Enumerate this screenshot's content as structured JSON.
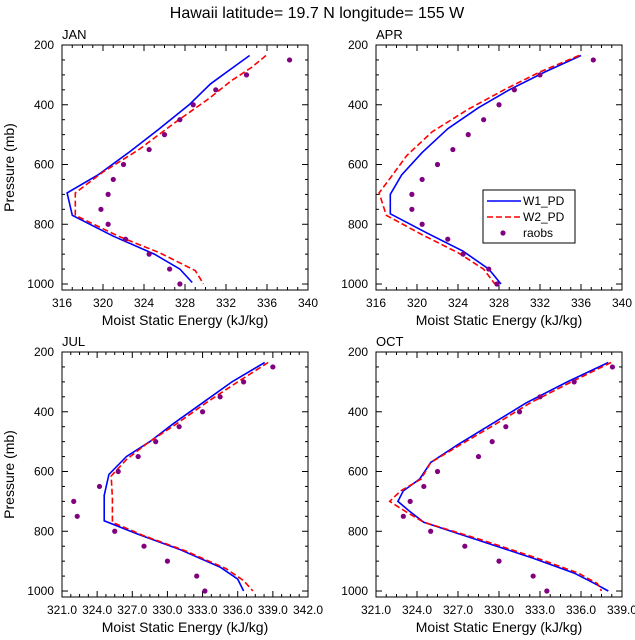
{
  "title": "Hawaii  latitude= 19.7 N longitude= 155 W",
  "legend": {
    "entries": [
      {
        "name": "W1_PD",
        "color": "#0000ff",
        "style": "solid"
      },
      {
        "name": "W2_PD",
        "color": "#ff0000",
        "style": "dashed"
      },
      {
        "name": "raobs",
        "color": "#800080",
        "style": "dot"
      }
    ]
  },
  "chart_data": [
    {
      "type": "line",
      "panel": "JAN",
      "xlabel": "Moist Static Energy (kJ/kg)",
      "ylabel": "Pressure (mb)",
      "xlim": [
        316,
        340
      ],
      "ylim": [
        200,
        1020
      ],
      "xticks": [
        316,
        320,
        324,
        328,
        332,
        336,
        340
      ],
      "xtick_labels": [
        "316",
        "320",
        "324",
        "328",
        "332",
        "336",
        "340"
      ],
      "yticks": [
        200,
        400,
        600,
        800,
        1000
      ],
      "ytick_labels": [
        "200",
        "400",
        "600",
        "800",
        "1000"
      ],
      "series": [
        {
          "name": "W1_PD",
          "points": [
            [
              334.3,
              235
            ],
            [
              332.5,
              280
            ],
            [
              330.5,
              330
            ],
            [
              328.4,
              400
            ],
            [
              325.5,
              480
            ],
            [
              322.5,
              560
            ],
            [
              319.5,
              635
            ],
            [
              316.5,
              695
            ],
            [
              317.0,
              770
            ],
            [
              321.0,
              840
            ],
            [
              325.0,
              900
            ],
            [
              327.5,
              950
            ],
            [
              328.7,
              995
            ]
          ]
        },
        {
          "name": "W2_PD",
          "points": [
            [
              335.9,
              235
            ],
            [
              334.5,
              275
            ],
            [
              332.5,
              320
            ],
            [
              330.3,
              380
            ],
            [
              327.0,
              460
            ],
            [
              323.5,
              550
            ],
            [
              320.0,
              625
            ],
            [
              317.3,
              695
            ],
            [
              317.3,
              770
            ],
            [
              321.5,
              840
            ],
            [
              325.5,
              895
            ],
            [
              329.0,
              955
            ],
            [
              329.8,
              1000
            ]
          ]
        },
        {
          "name": "raobs",
          "points": [
            [
              338.2,
              250
            ],
            [
              334.0,
              300
            ],
            [
              331.0,
              350
            ],
            [
              328.8,
              400
            ],
            [
              327.5,
              450
            ],
            [
              326.0,
              500
            ],
            [
              324.5,
              550
            ],
            [
              322.0,
              600
            ],
            [
              321.0,
              650
            ],
            [
              320.5,
              700
            ],
            [
              319.8,
              750
            ],
            [
              320.5,
              800
            ],
            [
              322.2,
              850
            ],
            [
              324.5,
              900
            ],
            [
              326.5,
              950
            ],
            [
              327.5,
              1000
            ]
          ]
        }
      ]
    },
    {
      "type": "line",
      "panel": "APR",
      "xlabel": "Moist Static Energy (kJ/kg)",
      "ylabel": "",
      "xlim": [
        316,
        340
      ],
      "ylim": [
        200,
        1020
      ],
      "xticks": [
        316,
        320,
        324,
        328,
        332,
        336,
        340
      ],
      "xtick_labels": [
        "316",
        "320",
        "324",
        "328",
        "332",
        "336",
        "340"
      ],
      "yticks": [
        200,
        400,
        600,
        800,
        1000
      ],
      "ytick_labels": [
        "200",
        "400",
        "600",
        "800",
        "1000"
      ],
      "series": [
        {
          "name": "W1_PD",
          "points": [
            [
              336.0,
              235
            ],
            [
              332.5,
              290
            ],
            [
              329.0,
              350
            ],
            [
              326.0,
              410
            ],
            [
              323.0,
              480
            ],
            [
              320.5,
              560
            ],
            [
              318.5,
              635
            ],
            [
              317.4,
              700
            ],
            [
              317.4,
              765
            ],
            [
              321.0,
              830
            ],
            [
              324.5,
              890
            ],
            [
              327.0,
              950
            ],
            [
              328.2,
              1000
            ]
          ]
        },
        {
          "name": "W2_PD",
          "points": [
            [
              335.8,
              235
            ],
            [
              332.0,
              290
            ],
            [
              328.5,
              350
            ],
            [
              325.0,
              415
            ],
            [
              321.5,
              490
            ],
            [
              319.0,
              570
            ],
            [
              317.5,
              640
            ],
            [
              316.3,
              695
            ],
            [
              317.0,
              770
            ],
            [
              320.5,
              835
            ],
            [
              324.0,
              895
            ],
            [
              326.5,
              950
            ],
            [
              327.6,
              1000
            ]
          ]
        },
        {
          "name": "raobs",
          "points": [
            [
              337.2,
              250
            ],
            [
              332.0,
              300
            ],
            [
              329.5,
              350
            ],
            [
              328.0,
              400
            ],
            [
              326.5,
              450
            ],
            [
              325.0,
              500
            ],
            [
              323.5,
              550
            ],
            [
              322.0,
              600
            ],
            [
              320.5,
              650
            ],
            [
              319.5,
              700
            ],
            [
              319.5,
              750
            ],
            [
              320.5,
              800
            ],
            [
              323.0,
              850
            ],
            [
              324.5,
              900
            ],
            [
              327.0,
              950
            ],
            [
              327.8,
              1000
            ]
          ]
        }
      ]
    },
    {
      "type": "line",
      "panel": "JUL",
      "xlabel": "Moist Static Energy (kJ/kg)",
      "ylabel": "Pressure (mb)",
      "xlim": [
        321,
        342
      ],
      "ylim": [
        200,
        1020
      ],
      "xticks": [
        321,
        324,
        327,
        330,
        333,
        336,
        339,
        342
      ],
      "xtick_labels": [
        "321.0",
        "324.0",
        "327.0",
        "330.0",
        "333.0",
        "336.0",
        "339.0",
        "342.0"
      ],
      "yticks": [
        200,
        400,
        600,
        800,
        1000
      ],
      "ytick_labels": [
        "200",
        "400",
        "600",
        "800",
        "1000"
      ],
      "series": [
        {
          "name": "W1_PD",
          "points": [
            [
              338.3,
              235
            ],
            [
              335.5,
              300
            ],
            [
              333.0,
              370
            ],
            [
              330.5,
              440
            ],
            [
              328.5,
              500
            ],
            [
              326.5,
              550
            ],
            [
              325.0,
              610
            ],
            [
              324.6,
              680
            ],
            [
              324.6,
              765
            ],
            [
              327.5,
              810
            ],
            [
              331.0,
              860
            ],
            [
              334.5,
              920
            ],
            [
              336.0,
              960
            ],
            [
              336.5,
              1000
            ]
          ]
        },
        {
          "name": "W2_PD",
          "points": [
            [
              338.6,
              235
            ],
            [
              336.0,
              300
            ],
            [
              333.3,
              370
            ],
            [
              330.8,
              440
            ],
            [
              328.3,
              505
            ],
            [
              326.5,
              560
            ],
            [
              325.2,
              615
            ],
            [
              325.3,
              690
            ],
            [
              325.3,
              770
            ],
            [
              328.0,
              815
            ],
            [
              331.5,
              865
            ],
            [
              335.0,
              925
            ],
            [
              336.5,
              965
            ],
            [
              337.3,
              1000
            ]
          ]
        },
        {
          "name": "raobs",
          "points": [
            [
              339.0,
              250
            ],
            [
              336.5,
              300
            ],
            [
              334.5,
              350
            ],
            [
              333.0,
              400
            ],
            [
              331.0,
              450
            ],
            [
              329.0,
              500
            ],
            [
              327.5,
              550
            ],
            [
              325.8,
              600
            ],
            [
              324.2,
              650
            ],
            [
              322.0,
              700
            ],
            [
              322.3,
              750
            ],
            [
              325.5,
              800
            ],
            [
              328.0,
              850
            ],
            [
              330.0,
              900
            ],
            [
              332.5,
              950
            ],
            [
              333.2,
              1000
            ]
          ]
        }
      ]
    },
    {
      "type": "line",
      "panel": "OCT",
      "xlabel": "Moist Static Energy (kJ/kg)",
      "ylabel": "",
      "xlim": [
        321,
        339
      ],
      "ylim": [
        200,
        1020
      ],
      "xticks": [
        321,
        324,
        327,
        330,
        333,
        336,
        339
      ],
      "xtick_labels": [
        "321.0",
        "324.0",
        "327.0",
        "330.0",
        "333.0",
        "336.0",
        "339.0"
      ],
      "yticks": [
        200,
        400,
        600,
        800,
        1000
      ],
      "ytick_labels": [
        "200",
        "400",
        "600",
        "800",
        "1000"
      ],
      "series": [
        {
          "name": "W1_PD",
          "points": [
            [
              338.0,
              235
            ],
            [
              335.0,
              300
            ],
            [
              332.0,
              370
            ],
            [
              329.5,
              440
            ],
            [
              327.0,
              510
            ],
            [
              325.0,
              570
            ],
            [
              324.2,
              625
            ],
            [
              323.0,
              665
            ],
            [
              322.6,
              700
            ],
            [
              323.5,
              735
            ],
            [
              324.5,
              770
            ],
            [
              328.5,
              830
            ],
            [
              332.5,
              890
            ],
            [
              335.5,
              940
            ],
            [
              337.0,
              975
            ],
            [
              338.0,
              1000
            ]
          ]
        },
        {
          "name": "W2_PD",
          "points": [
            [
              338.2,
              235
            ],
            [
              335.3,
              300
            ],
            [
              332.3,
              370
            ],
            [
              329.8,
              440
            ],
            [
              327.2,
              510
            ],
            [
              325.0,
              570
            ],
            [
              324.3,
              625
            ],
            [
              322.8,
              665
            ],
            [
              322.0,
              700
            ],
            [
              323.2,
              735
            ],
            [
              324.5,
              770
            ],
            [
              328.8,
              830
            ],
            [
              332.8,
              890
            ],
            [
              335.8,
              940
            ],
            [
              337.2,
              975
            ],
            [
              337.5,
              1000
            ]
          ]
        },
        {
          "name": "raobs",
          "points": [
            [
              338.3,
              250
            ],
            [
              335.5,
              300
            ],
            [
              333.0,
              350
            ],
            [
              331.5,
              400
            ],
            [
              330.5,
              450
            ],
            [
              329.5,
              500
            ],
            [
              328.5,
              550
            ],
            [
              325.5,
              600
            ],
            [
              324.5,
              650
            ],
            [
              323.5,
              700
            ],
            [
              323.0,
              750
            ],
            [
              325.0,
              800
            ],
            [
              327.5,
              850
            ],
            [
              330.0,
              900
            ],
            [
              332.5,
              950
            ],
            [
              333.5,
              1000
            ]
          ]
        }
      ]
    }
  ]
}
